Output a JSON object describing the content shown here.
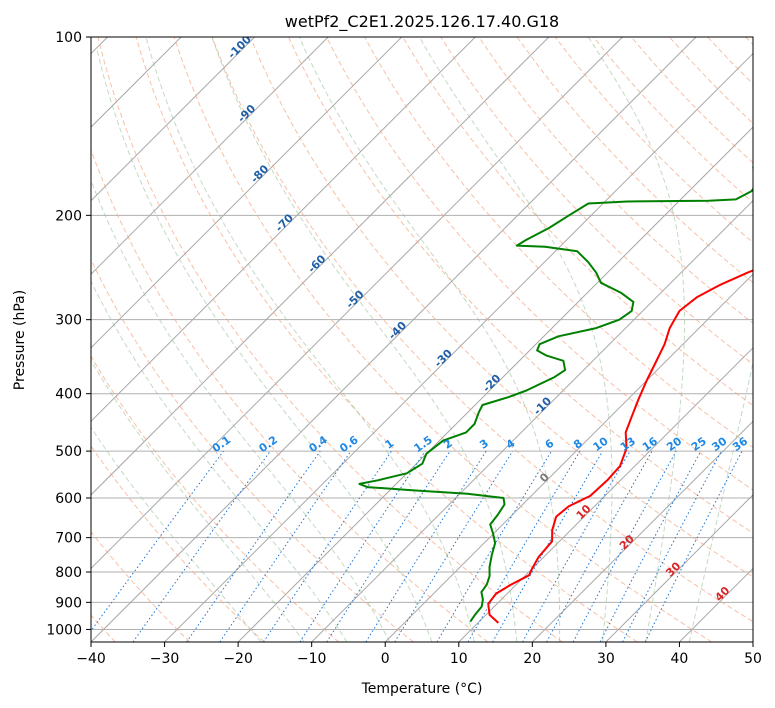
{
  "chart_data": {
    "type": "line",
    "title": "wetPf2_C2E1.2025.126.17.40.G18",
    "xlabel": "Temperature (°C)",
    "ylabel": "Pressure (hPa)",
    "xlim": [
      -40,
      50
    ],
    "ylim": [
      1050,
      100
    ],
    "y_scale": "log",
    "grid": true,
    "x_ticks": [
      "−40",
      "−30",
      "−20",
      "−10",
      "0",
      "10",
      "20",
      "30",
      "40",
      "50"
    ],
    "y_ticks": [
      "100",
      "200",
      "300",
      "400",
      "500",
      "600",
      "700",
      "800",
      "900",
      "1000"
    ],
    "skew_factor": 1.0,
    "series": [
      {
        "role": "temperature",
        "color": "#ff0000",
        "points": [
          [
            12.8,
            975
          ],
          [
            10.5,
            945
          ],
          [
            8.8,
            905
          ],
          [
            8.5,
            870
          ],
          [
            9.3,
            840
          ],
          [
            10.5,
            810
          ],
          [
            10.0,
            790
          ],
          [
            9.3,
            755
          ],
          [
            9.0,
            710
          ],
          [
            7.5,
            680
          ],
          [
            6.2,
            645
          ],
          [
            6.5,
            620
          ],
          [
            8.0,
            595
          ],
          [
            8.2,
            560
          ],
          [
            8.0,
            530
          ],
          [
            6.5,
            495
          ],
          [
            4.2,
            465
          ],
          [
            3.0,
            440
          ],
          [
            1.5,
            410
          ],
          [
            0.0,
            380
          ],
          [
            -1.2,
            355
          ],
          [
            -2.5,
            330
          ],
          [
            -4.0,
            310
          ],
          [
            -5.0,
            290
          ],
          [
            -4.5,
            275
          ],
          [
            -3.0,
            262
          ],
          [
            -1.0,
            250
          ],
          [
            3.0,
            232
          ],
          [
            8.0,
            215
          ],
          [
            11.5,
            200
          ],
          [
            13.0,
            190
          ],
          [
            14.5,
            180
          ],
          [
            16.0,
            170
          ],
          [
            17.0,
            160
          ],
          [
            17.8,
            150
          ],
          [
            18.8,
            140
          ],
          [
            19.5,
            132
          ],
          [
            21.0,
            125
          ],
          [
            22.5,
            118
          ],
          [
            23.5,
            112
          ],
          [
            24.0,
            107
          ],
          [
            24.3,
            103
          ],
          [
            24.5,
            100
          ]
        ]
      },
      {
        "role": "dewpoint",
        "color": "#008000",
        "points": [
          [
            8.8,
            970
          ],
          [
            8.5,
            945
          ],
          [
            8.3,
            915
          ],
          [
            7.5,
            890
          ],
          [
            6.3,
            865
          ],
          [
            6.0,
            840
          ],
          [
            5.2,
            812
          ],
          [
            4.0,
            785
          ],
          [
            2.7,
            750
          ],
          [
            1.5,
            715
          ],
          [
            0.0,
            690
          ],
          [
            -1.7,
            665
          ],
          [
            -2.0,
            640
          ],
          [
            -2.5,
            615
          ],
          [
            -3.5,
            600
          ],
          [
            -9.0,
            590
          ],
          [
            -17.0,
            582
          ],
          [
            -23.5,
            575
          ],
          [
            -25.0,
            568
          ],
          [
            -23.0,
            560
          ],
          [
            -20.0,
            545
          ],
          [
            -19.2,
            525
          ],
          [
            -20.0,
            505
          ],
          [
            -19.5,
            480
          ],
          [
            -17.5,
            465
          ],
          [
            -17.5,
            450
          ],
          [
            -18.5,
            430
          ],
          [
            -19.0,
            418
          ],
          [
            -16.5,
            405
          ],
          [
            -15.0,
            395
          ],
          [
            -13.0,
            375
          ],
          [
            -12.5,
            365
          ],
          [
            -14.0,
            352
          ],
          [
            -17.0,
            345
          ],
          [
            -19.0,
            338
          ],
          [
            -19.5,
            330
          ],
          [
            -18.0,
            320
          ],
          [
            -14.0,
            310
          ],
          [
            -12.0,
            300
          ],
          [
            -11.5,
            290
          ],
          [
            -12.5,
            280
          ],
          [
            -15.5,
            270
          ],
          [
            -19.5,
            260
          ],
          [
            -21.5,
            250
          ],
          [
            -24.0,
            240
          ],
          [
            -27.0,
            230
          ],
          [
            -32.0,
            226
          ],
          [
            -36.0,
            225
          ],
          [
            -35.5,
            220
          ],
          [
            -34.0,
            210
          ],
          [
            -33.0,
            200
          ],
          [
            -32.0,
            191
          ],
          [
            -27.0,
            189.5
          ],
          [
            -16.0,
            189
          ],
          [
            -12.5,
            188
          ],
          [
            -11.5,
            182
          ],
          [
            -11.8,
            177
          ],
          [
            -13.0,
            172
          ],
          [
            -14.5,
            166
          ],
          [
            -14.0,
            160
          ],
          [
            -11.0,
            155
          ],
          [
            -5.0,
            150
          ],
          [
            -2.0,
            145
          ],
          [
            -1.0,
            140
          ],
          [
            -0.5,
            135
          ],
          [
            -0.2,
            130
          ],
          [
            0.0,
            125
          ],
          [
            1.0,
            120
          ],
          [
            2.5,
            115
          ],
          [
            4.0,
            110
          ],
          [
            5.5,
            105
          ],
          [
            6.5,
            101
          ],
          [
            7.0,
            100
          ]
        ]
      }
    ],
    "dry_adiabat_labels": [
      "-100",
      "-90",
      "-80",
      "-70",
      "-60",
      "-50",
      "-40",
      "-30",
      "-20",
      "-10",
      "0",
      "10",
      "20",
      "30",
      "40"
    ],
    "mixing_ratio_labels": [
      "0.1",
      "0.2",
      "0.4",
      "0.6",
      "1",
      "1.5",
      "2",
      "3",
      "4",
      "6",
      "8",
      "10",
      "13",
      "16",
      "20",
      "25",
      "30",
      "36"
    ]
  }
}
